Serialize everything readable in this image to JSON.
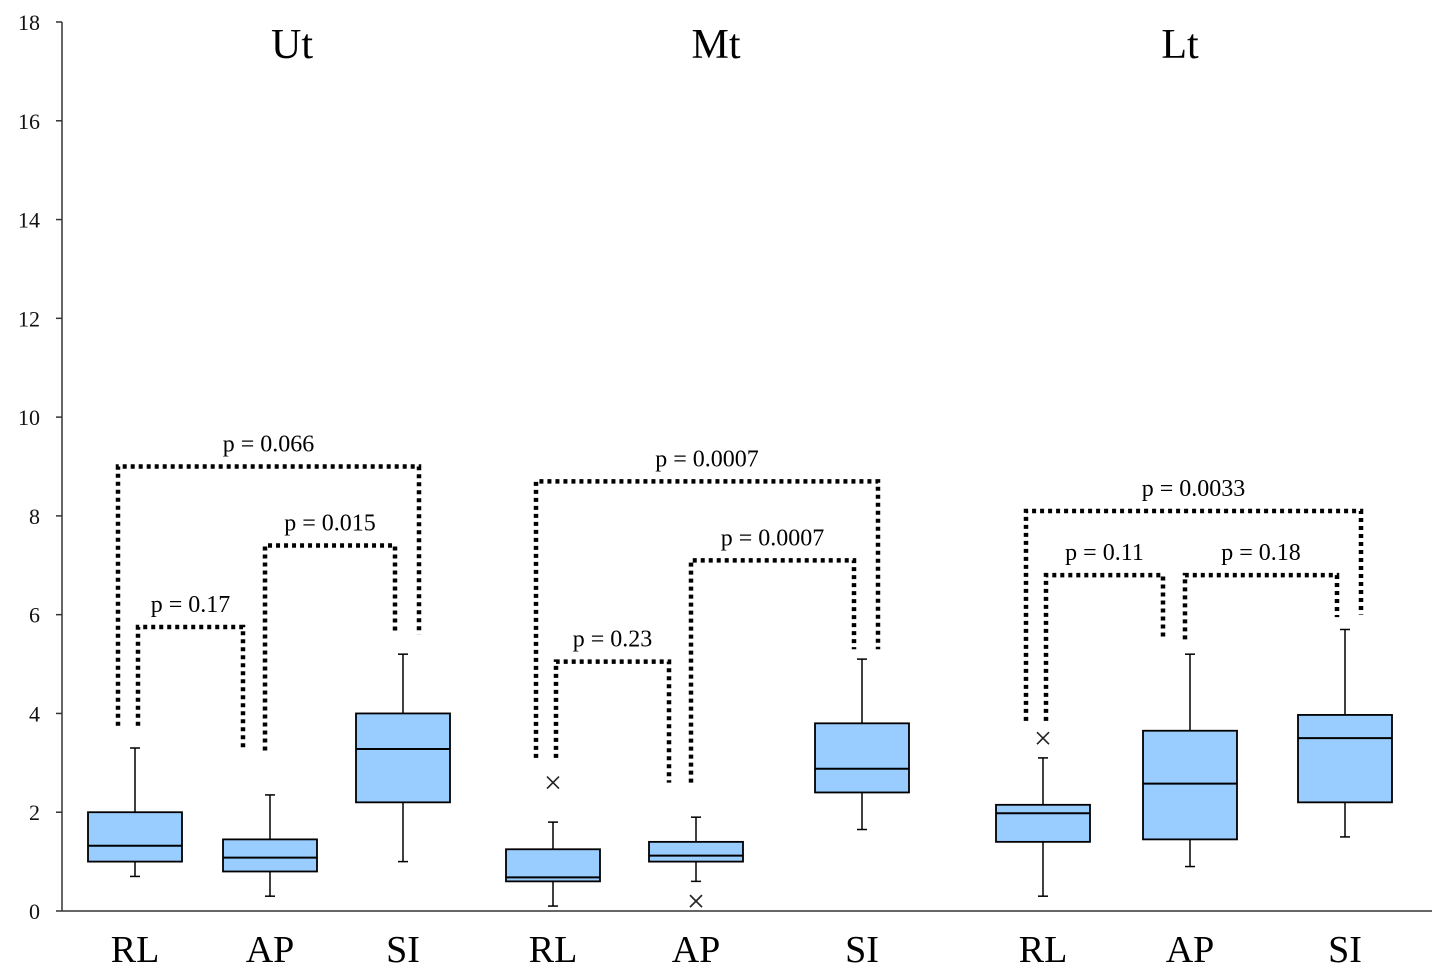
{
  "chart_data": {
    "type": "box",
    "ylim": [
      0,
      18
    ],
    "yticks": [
      "0",
      "2",
      "4",
      "6",
      "8",
      "10",
      "12",
      "14",
      "16",
      "18"
    ],
    "box_color": "#99ccff",
    "groups": [
      {
        "title": "Ut",
        "boxes": [
          {
            "label": "RL",
            "min": 0.7,
            "q1": 1.0,
            "median": 1.32,
            "q3": 2.0,
            "max": 3.3,
            "outliers": []
          },
          {
            "label": "AP",
            "min": 0.3,
            "q1": 0.8,
            "median": 1.08,
            "q3": 1.45,
            "max": 2.35,
            "outliers": []
          },
          {
            "label": "SI",
            "min": 1.0,
            "q1": 2.2,
            "median": 3.28,
            "q3": 4.0,
            "max": 5.2,
            "outliers": []
          }
        ],
        "comparisons": [
          {
            "from": 0,
            "to": 1,
            "text": "p = 0.17",
            "top": 5.75,
            "left_bottom": 3.75,
            "right_bottom": 3.25
          },
          {
            "from": 1,
            "to": 2,
            "text": "p = 0.015",
            "top": 7.4,
            "left_bottom": 3.25,
            "right_bottom": 5.6
          },
          {
            "from": 0,
            "to": 2,
            "text": "p = 0.066",
            "top": 9.0,
            "left_bottom": 3.75,
            "right_bottom": 5.6
          }
        ]
      },
      {
        "title": "Mt",
        "boxes": [
          {
            "label": "RL",
            "min": 0.1,
            "q1": 0.6,
            "median": 0.68,
            "q3": 1.25,
            "max": 1.8,
            "outliers": [
              2.6
            ]
          },
          {
            "label": "AP",
            "min": 0.6,
            "q1": 1.0,
            "median": 1.12,
            "q3": 1.4,
            "max": 1.9,
            "outliers": [
              0.2
            ]
          },
          {
            "label": "SI",
            "min": 1.65,
            "q1": 2.4,
            "median": 2.88,
            "q3": 3.8,
            "max": 5.1,
            "outliers": []
          }
        ],
        "comparisons": [
          {
            "from": 0,
            "to": 1,
            "text": "p = 0.23",
            "top": 5.05,
            "left_bottom": 3.1,
            "right_bottom": 2.6
          },
          {
            "from": 1,
            "to": 2,
            "text": "p = 0.0007",
            "top": 7.1,
            "left_bottom": 2.6,
            "right_bottom": 5.3
          },
          {
            "from": 0,
            "to": 2,
            "text": "p = 0.0007",
            "top": 8.7,
            "left_bottom": 3.1,
            "right_bottom": 5.3
          }
        ]
      },
      {
        "title": "Lt",
        "boxes": [
          {
            "label": "RL",
            "min": 0.3,
            "q1": 1.4,
            "median": 1.98,
            "q3": 2.15,
            "max": 3.1,
            "outliers": [
              3.5
            ]
          },
          {
            "label": "AP",
            "min": 0.9,
            "q1": 1.45,
            "median": 2.58,
            "q3": 3.65,
            "max": 5.2,
            "outliers": []
          },
          {
            "label": "SI",
            "min": 1.5,
            "q1": 2.2,
            "median": 3.5,
            "q3": 3.97,
            "max": 5.7,
            "outliers": []
          }
        ],
        "comparisons": [
          {
            "from": 0,
            "to": 1,
            "text": "p = 0.11",
            "top": 6.8,
            "left_bottom": 3.85,
            "right_bottom": 5.5
          },
          {
            "from": 1,
            "to": 2,
            "text": "p = 0.18",
            "top": 6.8,
            "left_bottom": 5.5,
            "right_bottom": 5.95
          },
          {
            "from": 0,
            "to": 2,
            "text": "p = 0.0033",
            "top": 8.1,
            "left_bottom": 3.85,
            "right_bottom": 6.0
          }
        ]
      }
    ]
  }
}
